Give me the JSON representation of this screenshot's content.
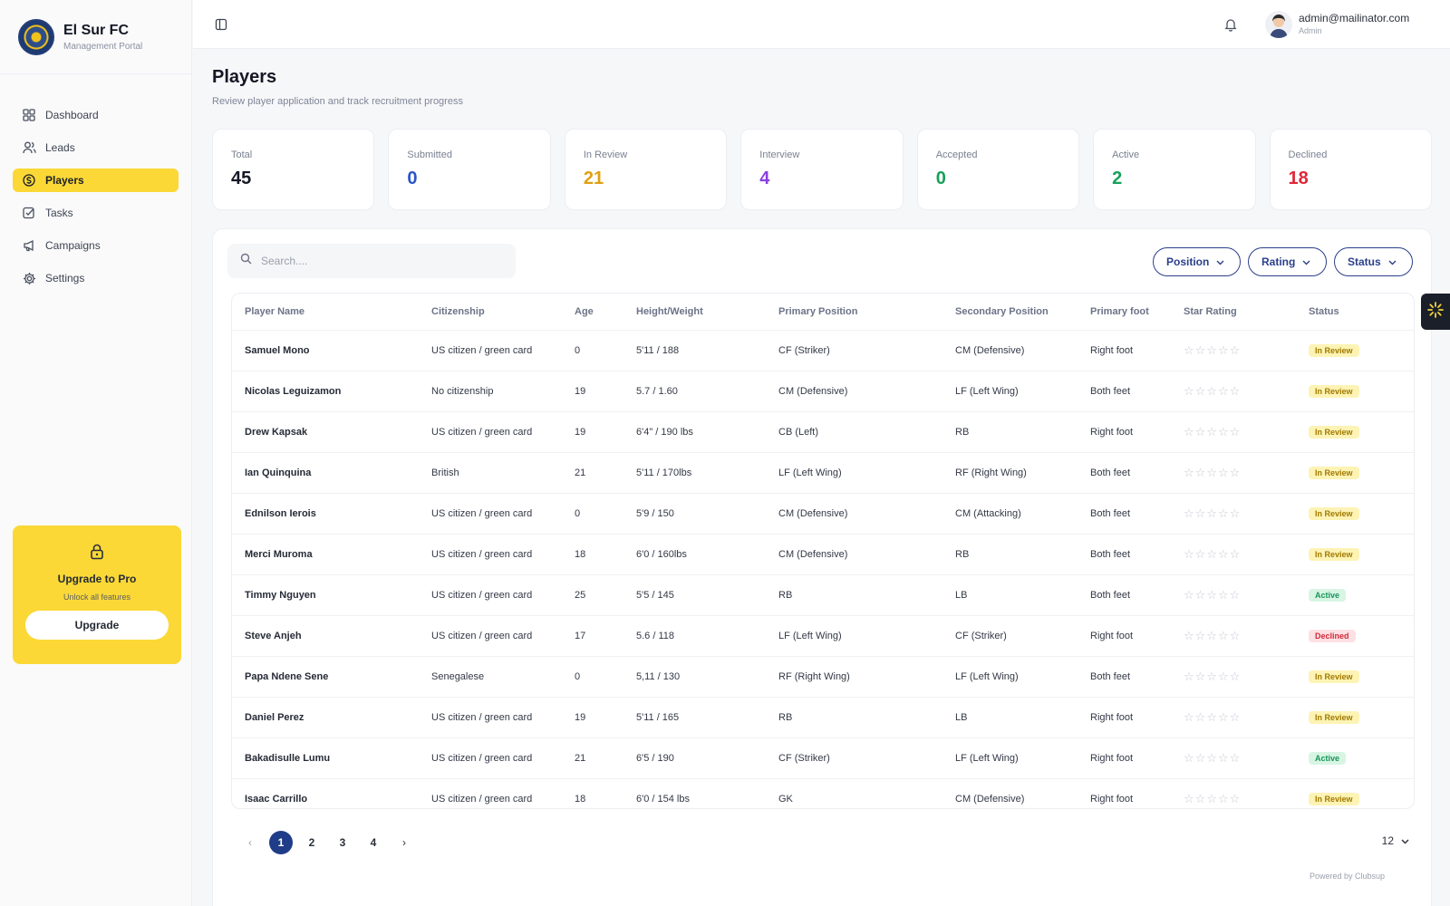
{
  "brand": {
    "name": "El Sur FC",
    "subtitle": "Management Portal"
  },
  "sidebar": {
    "items": [
      {
        "label": "Dashboard",
        "icon": "grid-icon",
        "active": false
      },
      {
        "label": "Leads",
        "icon": "users-icon",
        "active": false
      },
      {
        "label": "Players",
        "icon": "dollar-circle-icon",
        "active": true
      },
      {
        "label": "Tasks",
        "icon": "checkbox-icon",
        "active": false
      },
      {
        "label": "Campaigns",
        "icon": "megaphone-icon",
        "active": false
      },
      {
        "label": "Settings",
        "icon": "gear-icon",
        "active": false
      }
    ],
    "upgrade": {
      "title": "Upgrade to Pro",
      "subtitle": "Unlock all features",
      "button": "Upgrade"
    }
  },
  "topbar": {
    "email": "admin@mailinator.com",
    "role": "Admin"
  },
  "page": {
    "title": "Players",
    "subtitle": "Review player application and track recruitment progress"
  },
  "stats": [
    {
      "label": "Total",
      "value": "45",
      "color": "#141824"
    },
    {
      "label": "Submitted",
      "value": "0",
      "color": "#2b55c7"
    },
    {
      "label": "In Review",
      "value": "21",
      "color": "#e0a012"
    },
    {
      "label": "Interview",
      "value": "4",
      "color": "#8b3fe0"
    },
    {
      "label": "Accepted",
      "value": "0",
      "color": "#17a05a"
    },
    {
      "label": "Active",
      "value": "2",
      "color": "#17a05a"
    },
    {
      "label": "Declined",
      "value": "18",
      "color": "#e02638"
    }
  ],
  "search": {
    "placeholder": "Search...."
  },
  "filters": [
    "Position",
    "Rating",
    "Status"
  ],
  "table": {
    "headers": [
      "Player Name",
      "Citizenship",
      "Age",
      "Height/Weight",
      "Primary Position",
      "Secondary Position",
      "Primary foot",
      "Star Rating",
      "Status"
    ],
    "rows": [
      [
        "Samuel Mono",
        "US citizen / green card",
        "0",
        "5'11 / 188",
        "CF (Striker)",
        "CM (Defensive)",
        "Right foot",
        "",
        "In Review"
      ],
      [
        "Nicolas Leguizamon",
        "No citizenship",
        "19",
        "5.7 / 1.60",
        "CM (Defensive)",
        "LF (Left Wing)",
        "Both feet",
        "",
        "In Review"
      ],
      [
        "Drew Kapsak",
        "US citizen / green card",
        "19",
        "6'4\" / 190 lbs",
        "CB (Left)",
        "RB",
        "Right foot",
        "",
        "In Review"
      ],
      [
        "Ian Quinquina",
        "British",
        "21",
        "5'11 / 170lbs",
        "LF (Left Wing)",
        "RF (Right Wing)",
        "Both feet",
        "",
        "In Review"
      ],
      [
        "Ednilson Ierois",
        "US citizen / green card",
        "0",
        "5'9 / 150",
        "CM (Defensive)",
        "CM (Attacking)",
        "Both feet",
        "",
        "In Review"
      ],
      [
        "Merci Muroma",
        "US citizen / green card",
        "18",
        "6'0 / 160lbs",
        "CM (Defensive)",
        "RB",
        "Both feet",
        "",
        "In Review"
      ],
      [
        "Timmy Nguyen",
        "US citizen / green card",
        "25",
        "5'5 / 145",
        "RB",
        "LB",
        "Both feet",
        "",
        "Active"
      ],
      [
        "Steve Anjeh",
        "US citizen / green card",
        "17",
        "5.6 / 118",
        "LF (Left Wing)",
        "CF (Striker)",
        "Right foot",
        "",
        "Declined"
      ],
      [
        "Papa Ndene Sene",
        "Senegalese",
        "0",
        "5,11 / 130",
        "RF (Right Wing)",
        "LF (Left Wing)",
        "Both feet",
        "",
        "In Review"
      ],
      [
        "Daniel Perez",
        "US citizen / green card",
        "19",
        "5'11 / 165",
        "RB",
        "LB",
        "Right foot",
        "",
        "In Review"
      ],
      [
        "Bakadisulle Lumu",
        "US citizen / green card",
        "21",
        "6'5 / 190",
        "CF (Striker)",
        "LF (Left Wing)",
        "Right foot",
        "",
        "Active"
      ],
      [
        "Isaac Carrillo",
        "US citizen / green card",
        "18",
        "6'0 / 154 lbs",
        "GK",
        "CM (Defensive)",
        "Right foot",
        "",
        "In Review"
      ]
    ]
  },
  "status_styles": {
    "In Review": {
      "bg": "#fdf3b4",
      "fg": "#a07a00"
    },
    "Active": {
      "bg": "#d8f5e3",
      "fg": "#17955a"
    },
    "Declined": {
      "bg": "#fde0e3",
      "fg": "#d22a3c"
    }
  },
  "pagination": {
    "prev": "‹",
    "pages": [
      "1",
      "2",
      "3",
      "4"
    ],
    "current": "1",
    "next": "›",
    "per_page": "12"
  },
  "footer": {
    "powered": "Powered by Clubsup"
  },
  "colors": {
    "accent": "#fbd836",
    "primary": "#1f3c88"
  }
}
